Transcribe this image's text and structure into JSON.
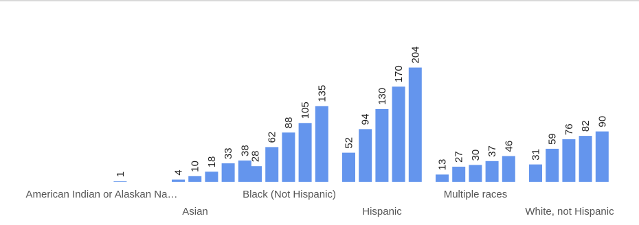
{
  "chart_data": {
    "type": "bar",
    "title": "",
    "xlabel": "",
    "ylabel": "",
    "bar_color": "#6495ed",
    "ylim": [
      0,
      220
    ],
    "categories": [
      "American Indian or Alaskan Na…",
      "Asian",
      "Black (Not Hispanic)",
      "Hispanic",
      "Multiple races",
      "White, not Hispanic"
    ],
    "groups": [
      {
        "category": "American Indian or Alaskan Na…",
        "values": [
          null,
          null,
          1,
          null,
          null
        ]
      },
      {
        "category": "Asian",
        "values": [
          4,
          10,
          18,
          33,
          38
        ]
      },
      {
        "category": "Black (Not Hispanic)",
        "values": [
          28,
          62,
          88,
          105,
          135
        ]
      },
      {
        "category": "Hispanic",
        "values": [
          52,
          94,
          130,
          170,
          204
        ]
      },
      {
        "category": "Multiple races",
        "values": [
          13,
          27,
          30,
          37,
          46
        ]
      },
      {
        "category": "White, not Hispanic",
        "values": [
          31,
          59,
          76,
          82,
          90
        ]
      }
    ]
  }
}
